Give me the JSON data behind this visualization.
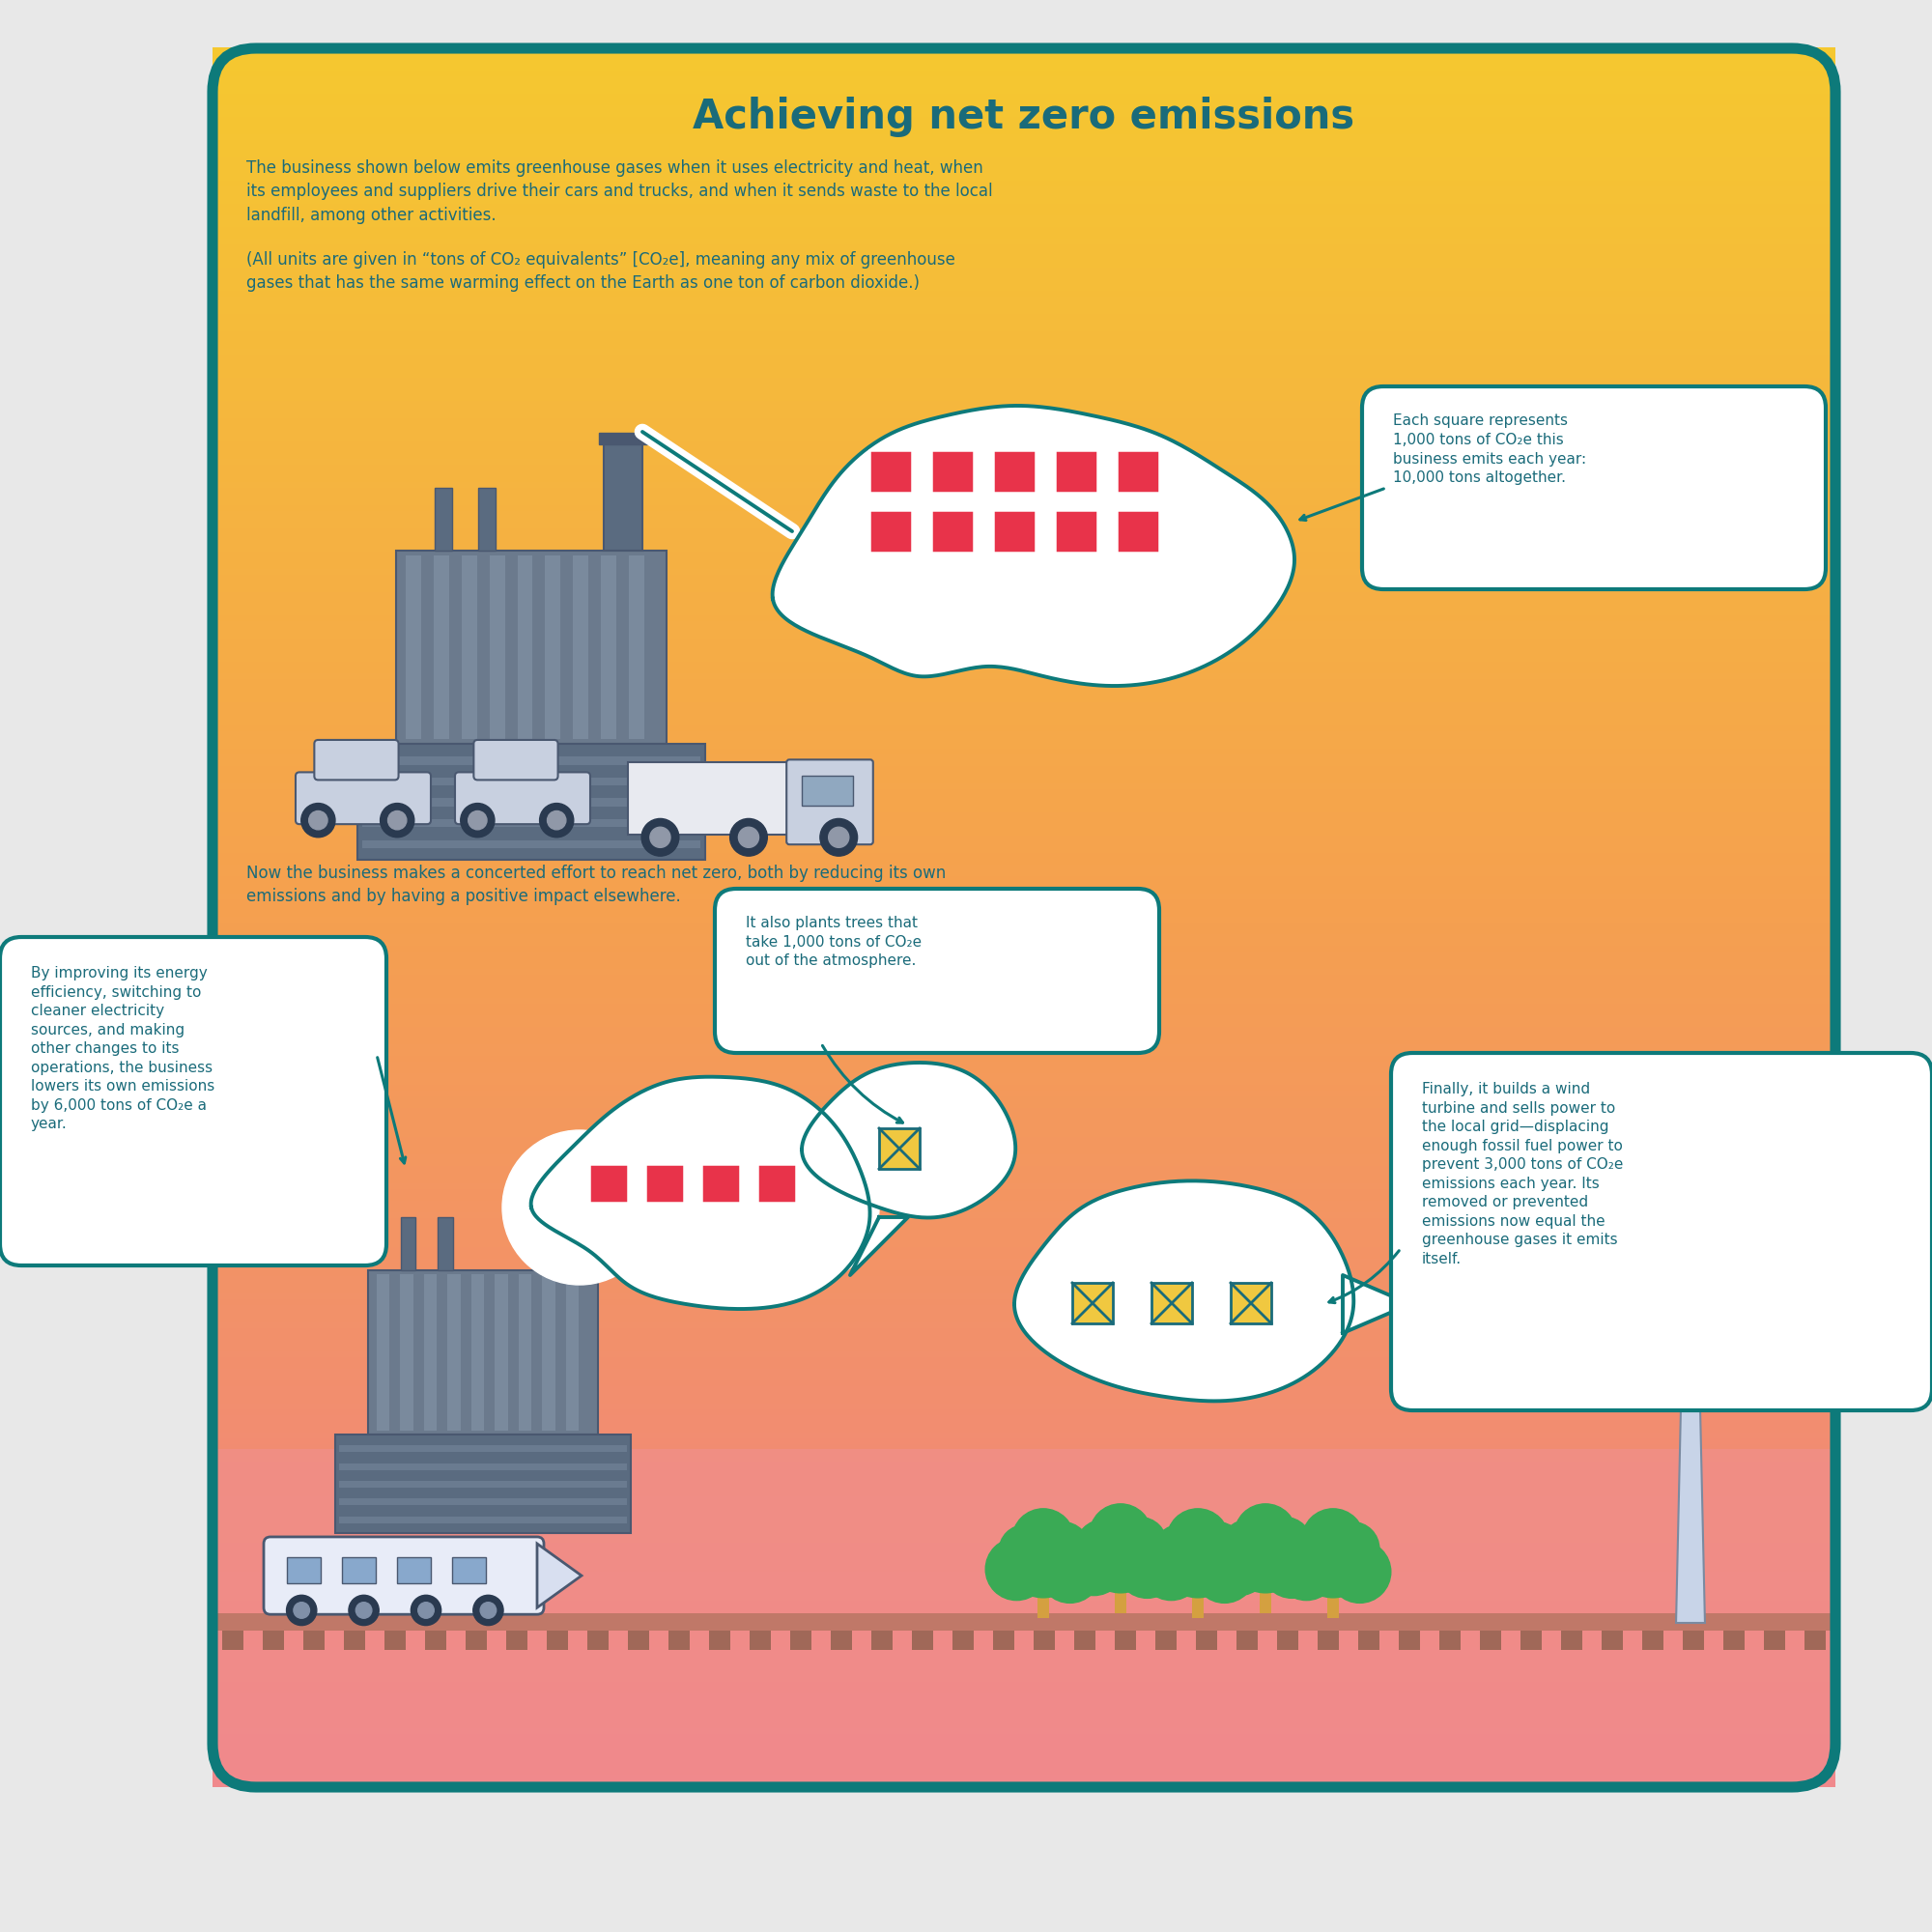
{
  "title": "Achieving net zero emissions",
  "title_color": "#1a6b7a",
  "body_text_color": "#1a6b7a",
  "callout_border": "#0d7a7a",
  "square_red": "#e8334a",
  "square_crossed_fill": "#f0c840",
  "square_crossed_x": "#1a6b7a",
  "tree_green": "#3aaa55",
  "tree_trunk": "#d4a040",
  "gradient_top": "#f5c830",
  "gradient_mid": "#f5a860",
  "gradient_bottom": "#f09090",
  "factory_body": "#6b7a8d",
  "factory_dark": "#4a5870",
  "factory_stripe": "#7a8a9d",
  "factory_lower": "#5a6b80",
  "car_body": "#c8d0e0",
  "truck_body": "#e8eaf0",
  "ground_rail": "#d08878",
  "ground_ties": "#b87060",
  "wind_blade": "#c8d4e8",
  "wind_edge": "#7a8aa0",
  "train_body": "#e8ecf8",
  "smoke_border": "#0d7a7a",
  "para1": "The business shown below emits greenhouse gases when it uses electricity and heat, when\nits employees and suppliers drive their cars and trucks, and when it sends waste to the local\nlandfill, among other activities.",
  "para2": "(All units are given in “tons of CO₂ equivalents” [CO₂e], meaning any mix of greenhouse\ngases that has the same warming effect on the Earth as one ton of carbon dioxide.)",
  "transition_text": "Now the business makes a concerted effort to reach net zero, both by reducing its own\nemissions and by having a positive impact elsewhere.",
  "callout1_text": "Each square represents\n1,000 tons of CO₂e this\nbusiness emits each year:\n10,000 tons altogether.",
  "callout2_text": "By improving its energy\nefficiency, switching to\ncleaner electricity\nsources, and making\nother changes to its\noperations, the business\nlowers its own emissions\nby 6,000 tons of CO₂e a\nyear.",
  "callout3_text": "It also plants trees that\ntake 1,000 tons of CO₂e\nout of the atmosphere.",
  "callout4_text": "Finally, it builds a wind\nturbine and sells power to\nthe local grid—displacing\nenough fossil fuel power to\nprevent 3,000 tons of CO₂e\nemissions each year. Its\nremoved or prevented\nemissions now equal the\ngreenhouse gases it emits\nitself."
}
